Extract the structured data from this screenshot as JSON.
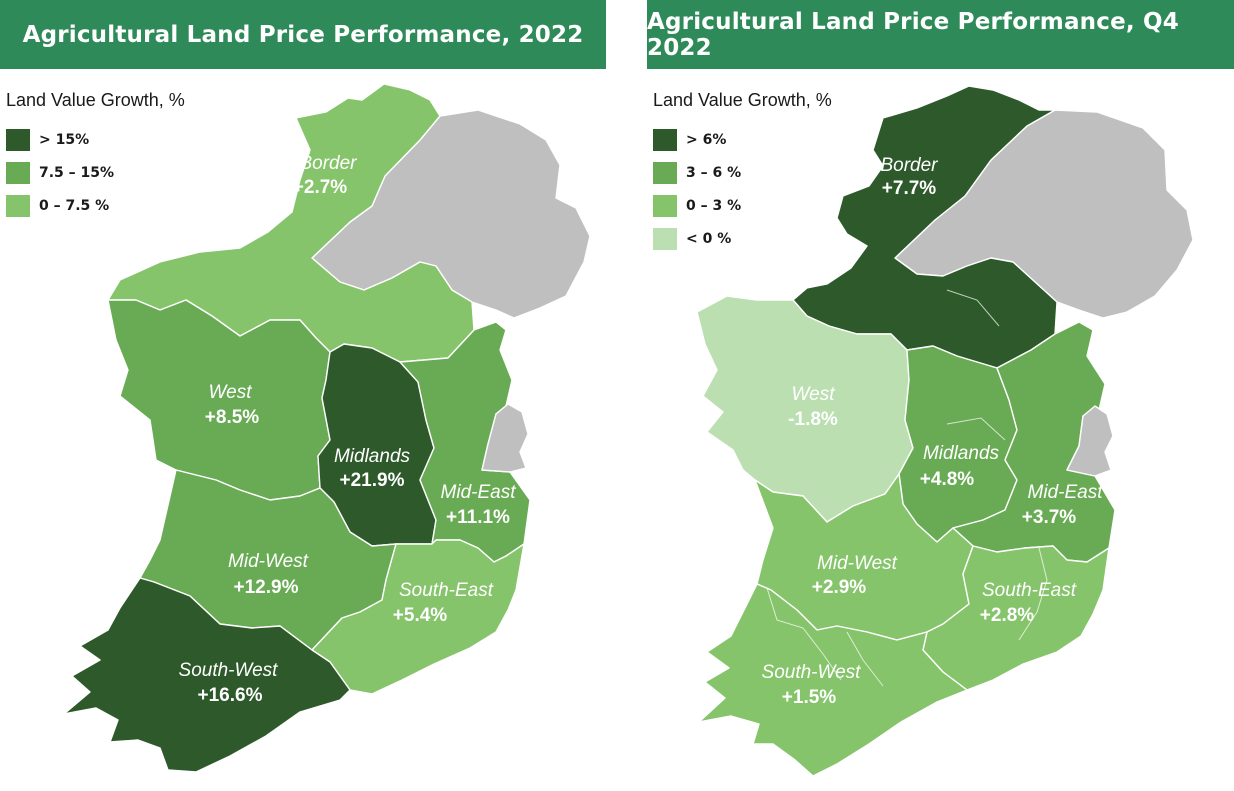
{
  "colors": {
    "title_bg": "#2f8a5a",
    "dark": "#2e5a2b",
    "mid": "#69ab55",
    "light": "#86c46b",
    "pale": "#bcdfb2",
    "ni": "#bfbfc0"
  },
  "maps": [
    {
      "title": "Agricultural Land Price Performance, 2022",
      "legend_title": "Land Value Growth, %",
      "legend": [
        {
          "label": "> 15%",
          "color": "#2e5a2b"
        },
        {
          "label": "7.5 – 15%",
          "color": "#69ab55"
        },
        {
          "label": "0 – 7.5 %",
          "color": "#86c46b"
        }
      ],
      "regions": [
        {
          "name": "Border",
          "value": "+2.7%",
          "color": "#86c46b"
        },
        {
          "name": "West",
          "value": "+8.5%",
          "color": "#69ab55"
        },
        {
          "name": "Midlands",
          "value": "+21.9%",
          "color": "#2e5a2b"
        },
        {
          "name": "Mid-East",
          "value": "+11.1%",
          "color": "#69ab55"
        },
        {
          "name": "Mid-West",
          "value": "+12.9%",
          "color": "#69ab55"
        },
        {
          "name": "South-East",
          "value": "+5.4%",
          "color": "#86c46b"
        },
        {
          "name": "South-West",
          "value": "+16.6%",
          "color": "#2e5a2b"
        }
      ]
    },
    {
      "title": "Agricultural Land Price Performance, Q4 2022",
      "legend_title": "Land Value Growth, %",
      "legend": [
        {
          "label": "> 6%",
          "color": "#2e5a2b"
        },
        {
          "label": "3 – 6 %",
          "color": "#69ab55"
        },
        {
          "label": "0 – 3 %",
          "color": "#86c46b"
        },
        {
          "label": "< 0 %",
          "color": "#bcdfb2"
        }
      ],
      "regions": [
        {
          "name": "Border",
          "value": "+7.7%",
          "color": "#2e5a2b"
        },
        {
          "name": "West",
          "value": "-1.8%",
          "color": "#bcdfb2"
        },
        {
          "name": "Midlands",
          "value": "+4.8%",
          "color": "#69ab55"
        },
        {
          "name": "Mid-East",
          "value": "+3.7%",
          "color": "#69ab55"
        },
        {
          "name": "Mid-West",
          "value": "+2.9%",
          "color": "#86c46b"
        },
        {
          "name": "South-East",
          "value": "+2.8%",
          "color": "#86c46b"
        },
        {
          "name": "South-West",
          "value": "+1.5%",
          "color": "#86c46b"
        }
      ]
    }
  ]
}
